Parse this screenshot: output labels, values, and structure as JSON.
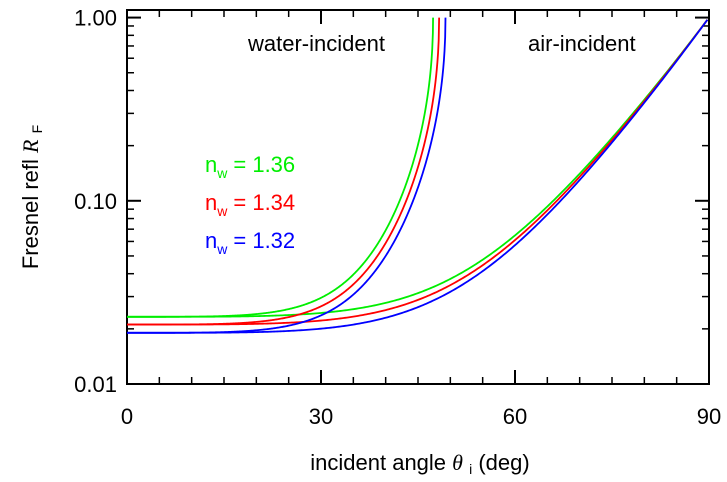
{
  "chart_data": {
    "type": "line",
    "xlabel_main": "incident angle",
    "xlabel_symbol": "θ",
    "xlabel_sub": "i",
    "xlabel_unit": "(deg)",
    "ylabel_main": "Fresnel refl",
    "ylabel_symbol": "R",
    "ylabel_sub": "F",
    "xlim": [
      0,
      90
    ],
    "ylim": [
      0.01,
      1.1
    ],
    "yscale": "log",
    "xticks": [
      0,
      30,
      60,
      90
    ],
    "xtick_labels": [
      "0",
      "30",
      "60",
      "90"
    ],
    "yticks": [
      0.01,
      0.1,
      1.0
    ],
    "ytick_labels": [
      "0.01",
      "0.10",
      "1.00"
    ],
    "grid": false,
    "annotations": {
      "water": "water-incident",
      "air": "air-incident"
    },
    "series": [
      {
        "name": "n",
        "sub": "w",
        "eq": "= 1.36",
        "n": 1.36,
        "color": "#00ee00"
      },
      {
        "name": "n",
        "sub": "w",
        "eq": "= 1.34",
        "n": 1.34,
        "color": "#ff0000"
      },
      {
        "name": "n",
        "sub": "w",
        "eq": "= 1.32",
        "n": 1.32,
        "color": "#0000ff"
      }
    ]
  }
}
